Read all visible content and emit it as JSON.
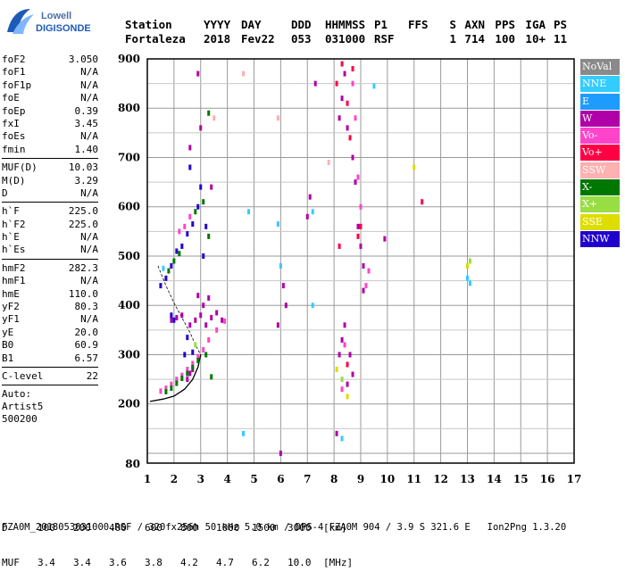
{
  "logo": {
    "line1": "Lowell",
    "line2": "DIGISONDE"
  },
  "header": {
    "row1": [
      "Station",
      "YYYY",
      "DAY",
      "DDD",
      "HHMMSS",
      "P1",
      "FFS",
      "S",
      "AXN",
      "PPS",
      "IGA",
      "PS"
    ],
    "row2": [
      "Fortaleza",
      "2018",
      "Fev22",
      "053",
      "031000",
      "RSF",
      "",
      "1",
      "714",
      "100",
      "10+",
      "11"
    ]
  },
  "params": {
    "group1": [
      {
        "label": "foF2",
        "value": "3.050"
      },
      {
        "label": "foF1",
        "value": "N/A"
      },
      {
        "label": "foF1p",
        "value": "N/A"
      },
      {
        "label": "foE",
        "value": "N/A"
      },
      {
        "label": "foEp",
        "value": "0.39"
      },
      {
        "label": "fxI",
        "value": "3.45"
      },
      {
        "label": "foEs",
        "value": "N/A"
      },
      {
        "label": "fmin",
        "value": "1.40"
      }
    ],
    "group2": [
      {
        "label": "MUF(D)",
        "value": "10.03"
      },
      {
        "label": "M(D)",
        "value": "3.29"
      },
      {
        "label": "D",
        "value": "N/A"
      }
    ],
    "group3": [
      {
        "label": "h`F",
        "value": "225.0"
      },
      {
        "label": "h`F2",
        "value": "225.0"
      },
      {
        "label": "h`E",
        "value": "N/A"
      },
      {
        "label": "h`Es",
        "value": "N/A"
      }
    ],
    "group4": [
      {
        "label": "hmF2",
        "value": "282.3"
      },
      {
        "label": "hmF1",
        "value": "N/A"
      },
      {
        "label": "hmE",
        "value": "110.0"
      },
      {
        "label": "yF2",
        "value": "80.3"
      },
      {
        "label": "yF1",
        "value": "N/A"
      },
      {
        "label": "yE",
        "value": "20.0"
      },
      {
        "label": "B0",
        "value": "60.9"
      },
      {
        "label": "B1",
        "value": "6.57"
      }
    ],
    "group5": [
      {
        "label": "C-level",
        "value": "22"
      }
    ],
    "auto": [
      "Auto:",
      "Artist5",
      "500200"
    ]
  },
  "legend": [
    {
      "label": "NoVal",
      "color": "#8a8a8a"
    },
    {
      "label": "NNE",
      "color": "#33ccff"
    },
    {
      "label": "E",
      "color": "#1e9bff"
    },
    {
      "label": "W",
      "color": "#b000a8"
    },
    {
      "label": "Vo-",
      "color": "#ff44cc"
    },
    {
      "label": "Vo+",
      "color": "#ff0044"
    },
    {
      "label": "SSW",
      "color": "#ffb0b0"
    },
    {
      "label": "X-",
      "color": "#007700"
    },
    {
      "label": "X+",
      "color": "#99dd44"
    },
    {
      "label": "SSE",
      "color": "#dddd00"
    },
    {
      "label": "NNW",
      "color": "#2200cc"
    }
  ],
  "footer": {
    "d_label": "D",
    "d_values": [
      "100",
      "200",
      "400",
      "600",
      "800",
      "1000",
      "1500",
      "3000",
      "[km]"
    ],
    "muf_label": "MUF",
    "muf_values": [
      "3.4",
      "3.4",
      "3.6",
      "3.8",
      "4.2",
      "4.7",
      "6.2",
      "10.0",
      "[MHz]"
    ],
    "bottom": "FZA0M_2018053031000.RSF / 320fx256h 50 kHz 5.0 km / DPS-4 FZA0M 904 / 3.9 S 321.6 E   Ion2Png 1.3.20"
  },
  "chart_data": {
    "type": "scatter",
    "title": "",
    "xlabel": "",
    "ylabel": "",
    "xlim": [
      1,
      17
    ],
    "ylim": [
      80,
      900
    ],
    "x_ticks": [
      1,
      2,
      3,
      4,
      5,
      6,
      7,
      8,
      9,
      10,
      11,
      12,
      13,
      14,
      15,
      16,
      17
    ],
    "y_ticks": [
      200,
      300,
      400,
      500,
      600,
      700,
      800,
      900
    ],
    "y_tick_labels": [
      "200",
      "300",
      "400",
      "500",
      "600",
      "700",
      "800",
      "900"
    ],
    "y_extra_label": "80",
    "grid": true,
    "legend_position": "right",
    "series": [
      {
        "key": "W",
        "color": "#b000a8",
        "points": [
          [
            1.9,
            370
          ],
          [
            2.1,
            375
          ],
          [
            2.3,
            380
          ],
          [
            2.6,
            360
          ],
          [
            2.8,
            370
          ],
          [
            3.0,
            380
          ],
          [
            3.2,
            360
          ],
          [
            3.4,
            375
          ],
          [
            3.6,
            385
          ],
          [
            3.8,
            370
          ],
          [
            2.9,
            420
          ],
          [
            3.1,
            400
          ],
          [
            3.3,
            415
          ],
          [
            2.5,
            250
          ],
          [
            2.6,
            262
          ],
          [
            2.7,
            270
          ],
          [
            6.1,
            440
          ],
          [
            6.2,
            400
          ],
          [
            7.0,
            580
          ],
          [
            7.1,
            620
          ],
          [
            7.3,
            850
          ],
          [
            8.2,
            780
          ],
          [
            8.3,
            820
          ],
          [
            8.4,
            870
          ],
          [
            8.5,
            760
          ],
          [
            8.7,
            700
          ],
          [
            8.8,
            650
          ],
          [
            8.9,
            560
          ],
          [
            9.0,
            520
          ],
          [
            9.1,
            480
          ],
          [
            9.1,
            430
          ],
          [
            8.2,
            300
          ],
          [
            8.3,
            330
          ],
          [
            8.4,
            360
          ],
          [
            8.5,
            240
          ],
          [
            8.1,
            140
          ],
          [
            6.0,
            100
          ],
          [
            5.9,
            360
          ],
          [
            9.9,
            535
          ],
          [
            3.0,
            760
          ],
          [
            2.6,
            720
          ],
          [
            2.9,
            870
          ],
          [
            3.4,
            640
          ],
          [
            8.6,
            300
          ],
          [
            8.7,
            260
          ]
        ]
      },
      {
        "key": "Vo-",
        "color": "#ff44cc",
        "points": [
          [
            1.5,
            226
          ],
          [
            1.7,
            232
          ],
          [
            1.9,
            240
          ],
          [
            2.1,
            250
          ],
          [
            2.3,
            258
          ],
          [
            2.5,
            270
          ],
          [
            2.7,
            282
          ],
          [
            2.9,
            296
          ],
          [
            3.1,
            310
          ],
          [
            3.3,
            330
          ],
          [
            3.6,
            350
          ],
          [
            3.9,
            368
          ],
          [
            2.2,
            550
          ],
          [
            2.4,
            560
          ],
          [
            2.6,
            580
          ],
          [
            9.2,
            440
          ],
          [
            9.3,
            470
          ],
          [
            9.0,
            600
          ],
          [
            8.9,
            660
          ],
          [
            8.8,
            780
          ],
          [
            8.7,
            850
          ],
          [
            8.3,
            230
          ],
          [
            8.4,
            320
          ]
        ]
      },
      {
        "key": "Vo+",
        "color": "#ff0044",
        "points": [
          [
            8.1,
            850
          ],
          [
            8.3,
            890
          ],
          [
            8.5,
            810
          ],
          [
            8.6,
            740
          ],
          [
            8.7,
            880
          ],
          [
            8.9,
            540
          ],
          [
            9.0,
            560
          ],
          [
            11.3,
            610
          ],
          [
            8.2,
            520
          ],
          [
            8.5,
            280
          ]
        ]
      },
      {
        "key": "X-",
        "color": "#007700",
        "points": [
          [
            1.7,
            225
          ],
          [
            1.9,
            232
          ],
          [
            2.1,
            242
          ],
          [
            2.3,
            252
          ],
          [
            2.5,
            262
          ],
          [
            2.7,
            274
          ],
          [
            2.9,
            288
          ],
          [
            3.2,
            300
          ],
          [
            3.4,
            255
          ],
          [
            3.3,
            540
          ],
          [
            3.1,
            610
          ],
          [
            2.8,
            590
          ],
          [
            2.2,
            505
          ],
          [
            2.0,
            490
          ],
          [
            1.8,
            470
          ],
          [
            3.3,
            790
          ]
        ]
      },
      {
        "key": "NNW",
        "color": "#2200cc",
        "points": [
          [
            1.5,
            440
          ],
          [
            1.7,
            455
          ],
          [
            1.9,
            480
          ],
          [
            2.1,
            510
          ],
          [
            2.3,
            520
          ],
          [
            2.5,
            545
          ],
          [
            2.7,
            565
          ],
          [
            2.9,
            600
          ],
          [
            3.0,
            640
          ],
          [
            2.6,
            680
          ],
          [
            3.1,
            500
          ],
          [
            1.9,
            380
          ],
          [
            2.0,
            370
          ],
          [
            2.4,
            300
          ],
          [
            2.7,
            305
          ],
          [
            2.5,
            335
          ],
          [
            3.2,
            560
          ]
        ]
      },
      {
        "key": "NNE",
        "color": "#33ccff",
        "points": [
          [
            1.6,
            475
          ],
          [
            4.8,
            590
          ],
          [
            5.9,
            565
          ],
          [
            6.0,
            480
          ],
          [
            7.2,
            590
          ],
          [
            7.2,
            400
          ],
          [
            9.5,
            845
          ],
          [
            13.0,
            455
          ],
          [
            13.1,
            445
          ],
          [
            4.6,
            140
          ],
          [
            8.3,
            130
          ]
        ]
      },
      {
        "key": "SSE",
        "color": "#dddd00",
        "points": [
          [
            11.0,
            680
          ],
          [
            8.1,
            270
          ],
          [
            13.0,
            480
          ],
          [
            8.5,
            215
          ]
        ]
      },
      {
        "key": "SSW",
        "color": "#ffb0b0",
        "points": [
          [
            3.5,
            780
          ],
          [
            4.6,
            870
          ],
          [
            5.9,
            780
          ],
          [
            7.8,
            690
          ]
        ]
      },
      {
        "key": "X+",
        "color": "#99dd44",
        "points": [
          [
            13.1,
            490
          ],
          [
            8.3,
            250
          ],
          [
            2.8,
            320
          ]
        ]
      }
    ],
    "curves": [
      {
        "name": "profile",
        "points": [
          [
            1.1,
            205
          ],
          [
            1.6,
            210
          ],
          [
            2.0,
            216
          ],
          [
            2.4,
            230
          ],
          [
            2.7,
            250
          ],
          [
            2.9,
            275
          ],
          [
            3.0,
            300
          ]
        ]
      },
      {
        "name": "trace",
        "points": [
          [
            1.4,
            480
          ],
          [
            1.7,
            440
          ],
          [
            2.0,
            405
          ],
          [
            2.3,
            375
          ],
          [
            2.6,
            345
          ],
          [
            2.8,
            320
          ],
          [
            3.0,
            300
          ]
        ]
      }
    ]
  }
}
